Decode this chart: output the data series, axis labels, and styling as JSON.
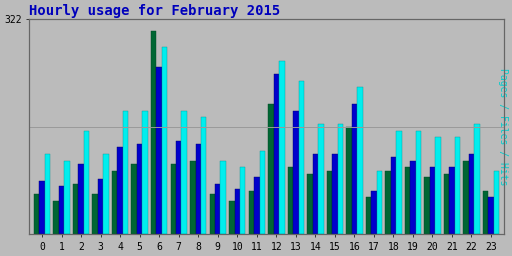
{
  "title": "Hourly usage for February 2015",
  "ylabel": "Pages / Files / Hits",
  "hours": [
    0,
    1,
    2,
    3,
    4,
    5,
    6,
    7,
    8,
    9,
    10,
    11,
    12,
    13,
    14,
    15,
    16,
    17,
    18,
    19,
    20,
    21,
    22,
    23
  ],
  "pages": [
    60,
    50,
    75,
    60,
    95,
    105,
    305,
    105,
    110,
    60,
    50,
    65,
    195,
    100,
    90,
    95,
    160,
    55,
    95,
    100,
    85,
    90,
    110,
    65
  ],
  "files": [
    80,
    72,
    105,
    82,
    130,
    135,
    250,
    140,
    135,
    75,
    68,
    85,
    240,
    185,
    120,
    120,
    195,
    65,
    115,
    110,
    100,
    100,
    120,
    55
  ],
  "hits": [
    120,
    110,
    155,
    120,
    185,
    185,
    280,
    185,
    175,
    110,
    100,
    125,
    260,
    230,
    165,
    165,
    220,
    95,
    155,
    155,
    145,
    145,
    165,
    95
  ],
  "ylim": [
    0,
    322
  ],
  "ytick_label": "322",
  "color_pages": "#006633",
  "color_files": "#0000cc",
  "color_hits": "#00eeee",
  "bg_color": "#bbbbbb",
  "plot_bg": "#bbbbbb",
  "title_color": "#0000bb",
  "ylabel_color": "#00cccc",
  "title_fontsize": 10,
  "bar_width": 0.28
}
